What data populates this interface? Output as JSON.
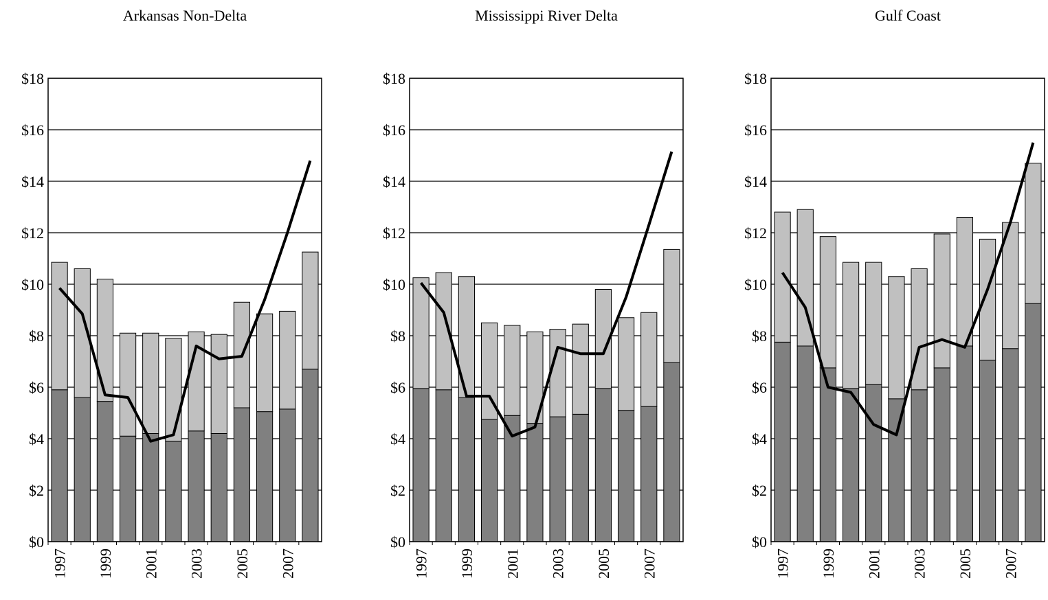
{
  "chart_data": [
    {
      "type": "bar",
      "title": "Arkansas Non-Delta",
      "stacked": true,
      "grid": true,
      "categories": [
        "1997",
        null,
        "1999",
        null,
        "2001",
        null,
        "2003",
        null,
        "2005",
        null,
        "2007",
        null
      ],
      "ylim": [
        0,
        18
      ],
      "yticks": [
        {
          "value": 0,
          "label": "$0"
        },
        {
          "value": 2,
          "label": "$2"
        },
        {
          "value": 4,
          "label": "$4"
        },
        {
          "value": 6,
          "label": "$6"
        },
        {
          "value": 8,
          "label": "$8"
        },
        {
          "value": 10,
          "label": "$10"
        },
        {
          "value": 12,
          "label": "$12"
        },
        {
          "value": 14,
          "label": "$14"
        },
        {
          "value": 16,
          "label": "$16"
        },
        {
          "value": 18,
          "label": "$18"
        }
      ],
      "series": [
        {
          "type": "bar",
          "color": "#808080",
          "values": [
            5.9,
            5.6,
            5.45,
            4.1,
            4.2,
            3.9,
            4.3,
            4.2,
            5.2,
            5.05,
            5.15,
            6.7
          ]
        },
        {
          "type": "bar",
          "color": "#c0c0c0",
          "values": [
            4.95,
            5.0,
            4.75,
            4.0,
            3.9,
            4.0,
            3.85,
            3.85,
            4.1,
            3.8,
            3.8,
            4.55
          ]
        },
        {
          "type": "line",
          "color": "#000000",
          "values": [
            9.85,
            8.85,
            5.7,
            5.6,
            3.9,
            4.15,
            7.6,
            7.1,
            7.2,
            9.4,
            12.0,
            14.8
          ]
        }
      ]
    },
    {
      "type": "bar",
      "title": "Mississippi River Delta",
      "stacked": true,
      "grid": true,
      "categories": [
        "1997",
        null,
        "1999",
        null,
        "2001",
        null,
        "2003",
        null,
        "2005",
        null,
        "2007",
        null
      ],
      "ylim": [
        0,
        18
      ],
      "yticks": [
        {
          "value": 0,
          "label": "$0"
        },
        {
          "value": 2,
          "label": "$2"
        },
        {
          "value": 4,
          "label": "$4"
        },
        {
          "value": 6,
          "label": "$6"
        },
        {
          "value": 8,
          "label": "$8"
        },
        {
          "value": 10,
          "label": "$10"
        },
        {
          "value": 12,
          "label": "$12"
        },
        {
          "value": 14,
          "label": "$14"
        },
        {
          "value": 16,
          "label": "$16"
        },
        {
          "value": 18,
          "label": "$18"
        }
      ],
      "series": [
        {
          "type": "bar",
          "color": "#808080",
          "values": [
            5.95,
            5.9,
            5.6,
            4.75,
            4.9,
            4.6,
            4.85,
            4.95,
            5.95,
            5.1,
            5.25,
            6.95
          ]
        },
        {
          "type": "bar",
          "color": "#c0c0c0",
          "values": [
            4.3,
            4.55,
            4.7,
            3.75,
            3.5,
            3.55,
            3.4,
            3.5,
            3.85,
            3.6,
            3.65,
            4.4
          ]
        },
        {
          "type": "line",
          "color": "#000000",
          "values": [
            10.05,
            8.9,
            5.65,
            5.65,
            4.1,
            4.45,
            7.55,
            7.3,
            7.3,
            9.5,
            12.3,
            15.15
          ]
        }
      ]
    },
    {
      "type": "bar",
      "title": "Gulf Coast",
      "stacked": true,
      "grid": true,
      "categories": [
        "1997",
        null,
        "1999",
        null,
        "2001",
        null,
        "2003",
        null,
        "2005",
        null,
        "2007",
        null
      ],
      "ylim": [
        0,
        18
      ],
      "yticks": [
        {
          "value": 0,
          "label": "$0"
        },
        {
          "value": 2,
          "label": "$2"
        },
        {
          "value": 4,
          "label": "$4"
        },
        {
          "value": 6,
          "label": "$6"
        },
        {
          "value": 8,
          "label": "$8"
        },
        {
          "value": 10,
          "label": "$10"
        },
        {
          "value": 12,
          "label": "$12"
        },
        {
          "value": 14,
          "label": "$14"
        },
        {
          "value": 16,
          "label": "$16"
        },
        {
          "value": 18,
          "label": "$18"
        }
      ],
      "series": [
        {
          "type": "bar",
          "color": "#808080",
          "values": [
            7.75,
            7.6,
            6.75,
            5.95,
            6.1,
            5.55,
            5.9,
            6.75,
            7.6,
            7.05,
            7.5,
            9.25
          ]
        },
        {
          "type": "bar",
          "color": "#c0c0c0",
          "values": [
            5.05,
            5.3,
            5.1,
            4.9,
            4.75,
            4.75,
            4.7,
            5.2,
            5.0,
            4.7,
            4.9,
            5.45
          ]
        },
        {
          "type": "line",
          "color": "#000000",
          "values": [
            10.45,
            9.1,
            6.0,
            5.8,
            4.55,
            4.15,
            7.55,
            7.85,
            7.55,
            9.8,
            12.4,
            15.5
          ]
        }
      ]
    }
  ]
}
